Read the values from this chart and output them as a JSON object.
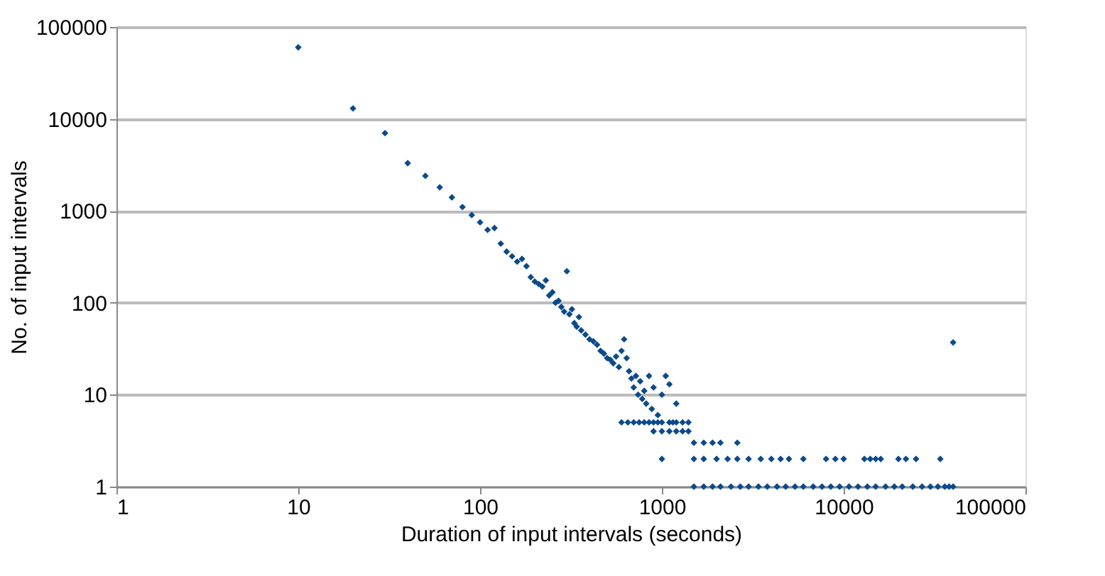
{
  "chart_data": {
    "type": "scatter",
    "xlabel": "Duration of input intervals (seconds)",
    "ylabel": "No. of input intervals",
    "log": "xy",
    "xlim": [
      1,
      100000
    ],
    "ylim": [
      1,
      100000
    ],
    "xticks": [
      1,
      10,
      100,
      1000,
      10000,
      100000
    ],
    "yticks": [
      1,
      10,
      100,
      1000,
      10000,
      100000
    ],
    "grid": "y",
    "marker": "diamond",
    "series": [
      {
        "color": "#0b4a8b",
        "x": [
          10,
          20,
          30,
          40,
          50,
          60,
          70,
          80,
          90,
          100,
          110,
          120,
          130,
          140,
          150,
          160,
          170,
          180,
          190,
          200,
          210,
          220,
          230,
          240,
          250,
          260,
          270,
          280,
          290,
          300,
          310,
          320,
          330,
          340,
          350,
          360,
          380,
          400,
          420,
          440,
          460,
          480,
          500,
          520,
          540,
          560,
          580,
          600,
          620,
          640,
          660,
          680,
          700,
          720,
          740,
          760,
          780,
          800,
          820,
          850,
          880,
          900,
          950,
          1000,
          1050,
          1100,
          1150,
          1200,
          600,
          650,
          700,
          750,
          800,
          850,
          900,
          950,
          1000,
          1100,
          1200,
          1300,
          1400,
          900,
          1000,
          1100,
          1200,
          1300,
          1400,
          1500,
          1700,
          1900,
          2100,
          2600,
          1000,
          1500,
          1700,
          2000,
          2300,
          2600,
          3000,
          3500,
          4000,
          4500,
          5000,
          6000,
          8000,
          9000,
          10000,
          13000,
          14000,
          15000,
          16000,
          20000,
          22000,
          25000,
          34000,
          1500,
          1700,
          1900,
          2100,
          2400,
          2700,
          3000,
          3400,
          3800,
          4300,
          4800,
          5400,
          6000,
          6800,
          7600,
          8500,
          9500,
          10700,
          12000,
          13500,
          15000,
          17000,
          19000,
          21000,
          24000,
          27000,
          30000,
          33000,
          36000,
          38000,
          40000,
          40000
        ],
        "values": [
          60000,
          13000,
          7000,
          3300,
          2400,
          1800,
          1400,
          1100,
          900,
          750,
          620,
          650,
          440,
          360,
          320,
          280,
          300,
          250,
          190,
          170,
          160,
          150,
          175,
          120,
          130,
          100,
          105,
          90,
          80,
          220,
          75,
          85,
          60,
          55,
          70,
          50,
          45,
          40,
          38,
          35,
          30,
          28,
          25,
          24,
          22,
          26,
          20,
          30,
          40,
          25,
          18,
          15,
          12,
          16,
          10,
          14,
          9,
          11,
          8,
          16,
          7,
          12,
          6,
          10,
          16,
          13,
          5,
          8,
          5,
          5,
          5,
          5,
          5,
          5,
          5,
          5,
          5,
          5,
          5,
          5,
          5,
          4,
          4,
          4,
          4,
          4,
          4,
          3,
          3,
          3,
          3,
          3,
          2,
          2,
          2,
          2,
          2,
          2,
          2,
          2,
          2,
          2,
          2,
          2,
          2,
          2,
          2,
          2,
          2,
          2,
          2,
          2,
          2,
          2,
          2,
          1,
          1,
          1,
          1,
          1,
          1,
          1,
          1,
          1,
          1,
          1,
          1,
          1,
          1,
          1,
          1,
          1,
          1,
          1,
          1,
          1,
          1,
          1,
          1,
          1,
          1,
          1,
          1,
          1,
          1,
          1,
          37
        ]
      }
    ]
  }
}
